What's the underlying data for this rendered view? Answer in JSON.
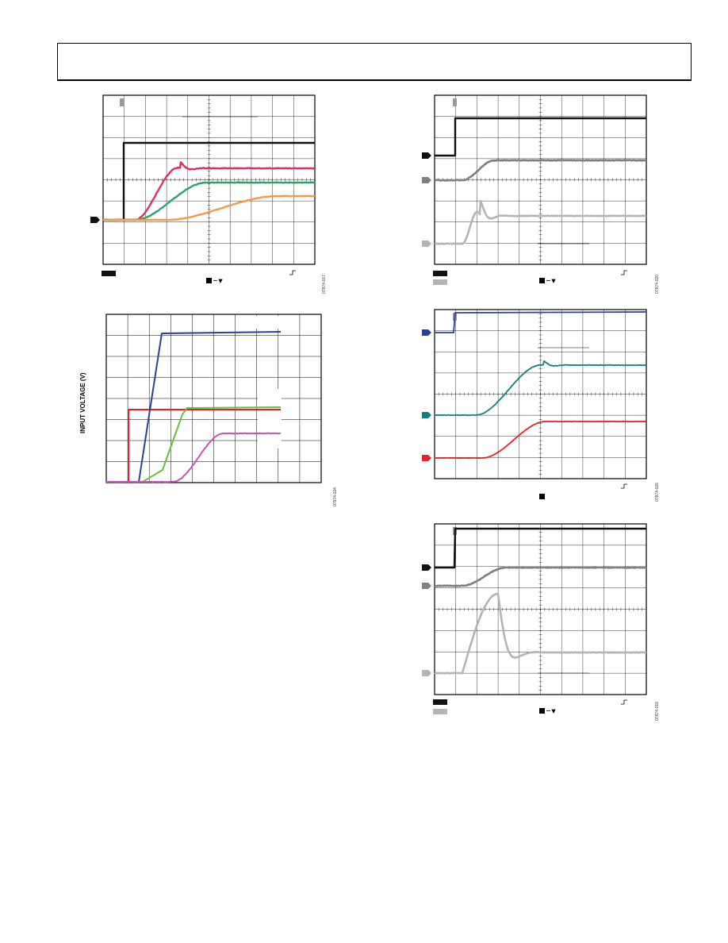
{
  "page": {
    "y_axis_label": "INPUT VOLTAGE (V)"
  },
  "figures": [
    {
      "id": "fig1",
      "figure_code": "07874-017"
    },
    {
      "id": "fig2",
      "figure_code": "07874-024"
    },
    {
      "id": "fig3",
      "figure_code": "07874-020"
    },
    {
      "id": "fig4",
      "figure_code": "07874-026"
    },
    {
      "id": "fig5",
      "figure_code": "07874-019"
    }
  ],
  "colors": {
    "black": "#111111",
    "red_pink": "#e0305a",
    "green": "#2aa36a",
    "orange": "#f39a4a",
    "blue": "#2b3f9a",
    "red": "#e8202a",
    "lime": "#6abf3a",
    "magenta": "#c055b5",
    "gray_dark": "#808080",
    "gray_light": "#b4b4b4",
    "teal": "#12807e",
    "grid": "#000000"
  }
}
